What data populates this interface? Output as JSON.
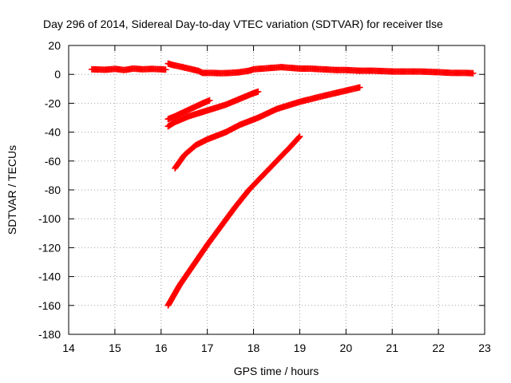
{
  "chart_data": {
    "type": "scatter",
    "title": "Day 296 of 2014, Sidereal Day-to-day VTEC variation (SDTVAR) for receiver tlse",
    "xlabel": "GPS time / hours",
    "ylabel": "SDTVAR / TECUs",
    "xlim": [
      14,
      23
    ],
    "ylim": [
      -180,
      20
    ],
    "xticks": [
      14,
      15,
      16,
      17,
      18,
      19,
      20,
      21,
      22,
      23
    ],
    "yticks": [
      20,
      0,
      -20,
      -40,
      -60,
      -80,
      -100,
      -120,
      -140,
      -160,
      -180
    ],
    "grid": true,
    "legend": "none",
    "marker": "plus",
    "color": "#ff0000",
    "series": [
      {
        "points": [
          [
            14.5,
            3.5
          ],
          [
            14.8,
            3.2
          ],
          [
            15.0,
            3.8
          ],
          [
            15.2,
            3.0
          ],
          [
            15.4,
            4.0
          ],
          [
            15.6,
            3.5
          ],
          [
            15.8,
            3.8
          ],
          [
            16.0,
            3.5
          ],
          [
            16.1,
            3.3
          ]
        ]
      },
      {
        "points": [
          [
            16.15,
            7.5
          ],
          [
            16.25,
            6.5
          ],
          [
            16.4,
            5.5
          ],
          [
            16.6,
            4.0
          ],
          [
            16.8,
            2.5
          ],
          [
            16.9,
            1.0
          ],
          [
            17.1,
            1.0
          ],
          [
            17.3,
            0.8
          ],
          [
            17.5,
            1.0
          ],
          [
            17.7,
            1.5
          ],
          [
            17.9,
            2.5
          ],
          [
            18.0,
            3.5
          ],
          [
            18.2,
            4.0
          ],
          [
            18.4,
            4.5
          ],
          [
            18.6,
            5.0
          ],
          [
            18.8,
            4.5
          ],
          [
            19.0,
            4.0
          ],
          [
            19.2,
            4.0
          ],
          [
            19.5,
            3.5
          ],
          [
            19.8,
            3.0
          ],
          [
            20.0,
            3.0
          ],
          [
            20.3,
            2.5
          ],
          [
            20.6,
            2.5
          ],
          [
            21.0,
            2.0
          ],
          [
            21.3,
            2.0
          ],
          [
            21.6,
            2.0
          ],
          [
            22.0,
            1.5
          ],
          [
            22.3,
            1.0
          ],
          [
            22.6,
            1.0
          ],
          [
            22.75,
            0.8
          ]
        ]
      },
      {
        "points": [
          [
            16.15,
            -31
          ],
          [
            16.3,
            -29
          ],
          [
            16.5,
            -26
          ],
          [
            16.7,
            -23
          ],
          [
            16.9,
            -20
          ],
          [
            17.05,
            -18
          ]
        ]
      },
      {
        "points": [
          [
            16.15,
            -36
          ],
          [
            16.3,
            -33
          ],
          [
            16.6,
            -29
          ],
          [
            17.0,
            -25
          ],
          [
            17.4,
            -21
          ],
          [
            17.7,
            -17
          ],
          [
            18.0,
            -13
          ],
          [
            18.1,
            -12
          ]
        ]
      },
      {
        "points": [
          [
            16.3,
            -65
          ],
          [
            16.5,
            -56
          ],
          [
            16.75,
            -49
          ],
          [
            17.0,
            -45
          ],
          [
            17.4,
            -40
          ],
          [
            17.7,
            -35
          ],
          [
            18.1,
            -30
          ],
          [
            18.5,
            -24
          ],
          [
            19.0,
            -19
          ],
          [
            19.5,
            -15
          ],
          [
            19.9,
            -12
          ],
          [
            20.3,
            -9
          ]
        ]
      },
      {
        "points": [
          [
            16.15,
            -160
          ],
          [
            16.4,
            -146
          ],
          [
            16.7,
            -132
          ],
          [
            17.0,
            -118
          ],
          [
            17.3,
            -105
          ],
          [
            17.6,
            -92
          ],
          [
            17.9,
            -80
          ],
          [
            18.2,
            -70
          ],
          [
            18.5,
            -60
          ],
          [
            18.8,
            -50
          ],
          [
            19.0,
            -43
          ]
        ]
      }
    ]
  }
}
